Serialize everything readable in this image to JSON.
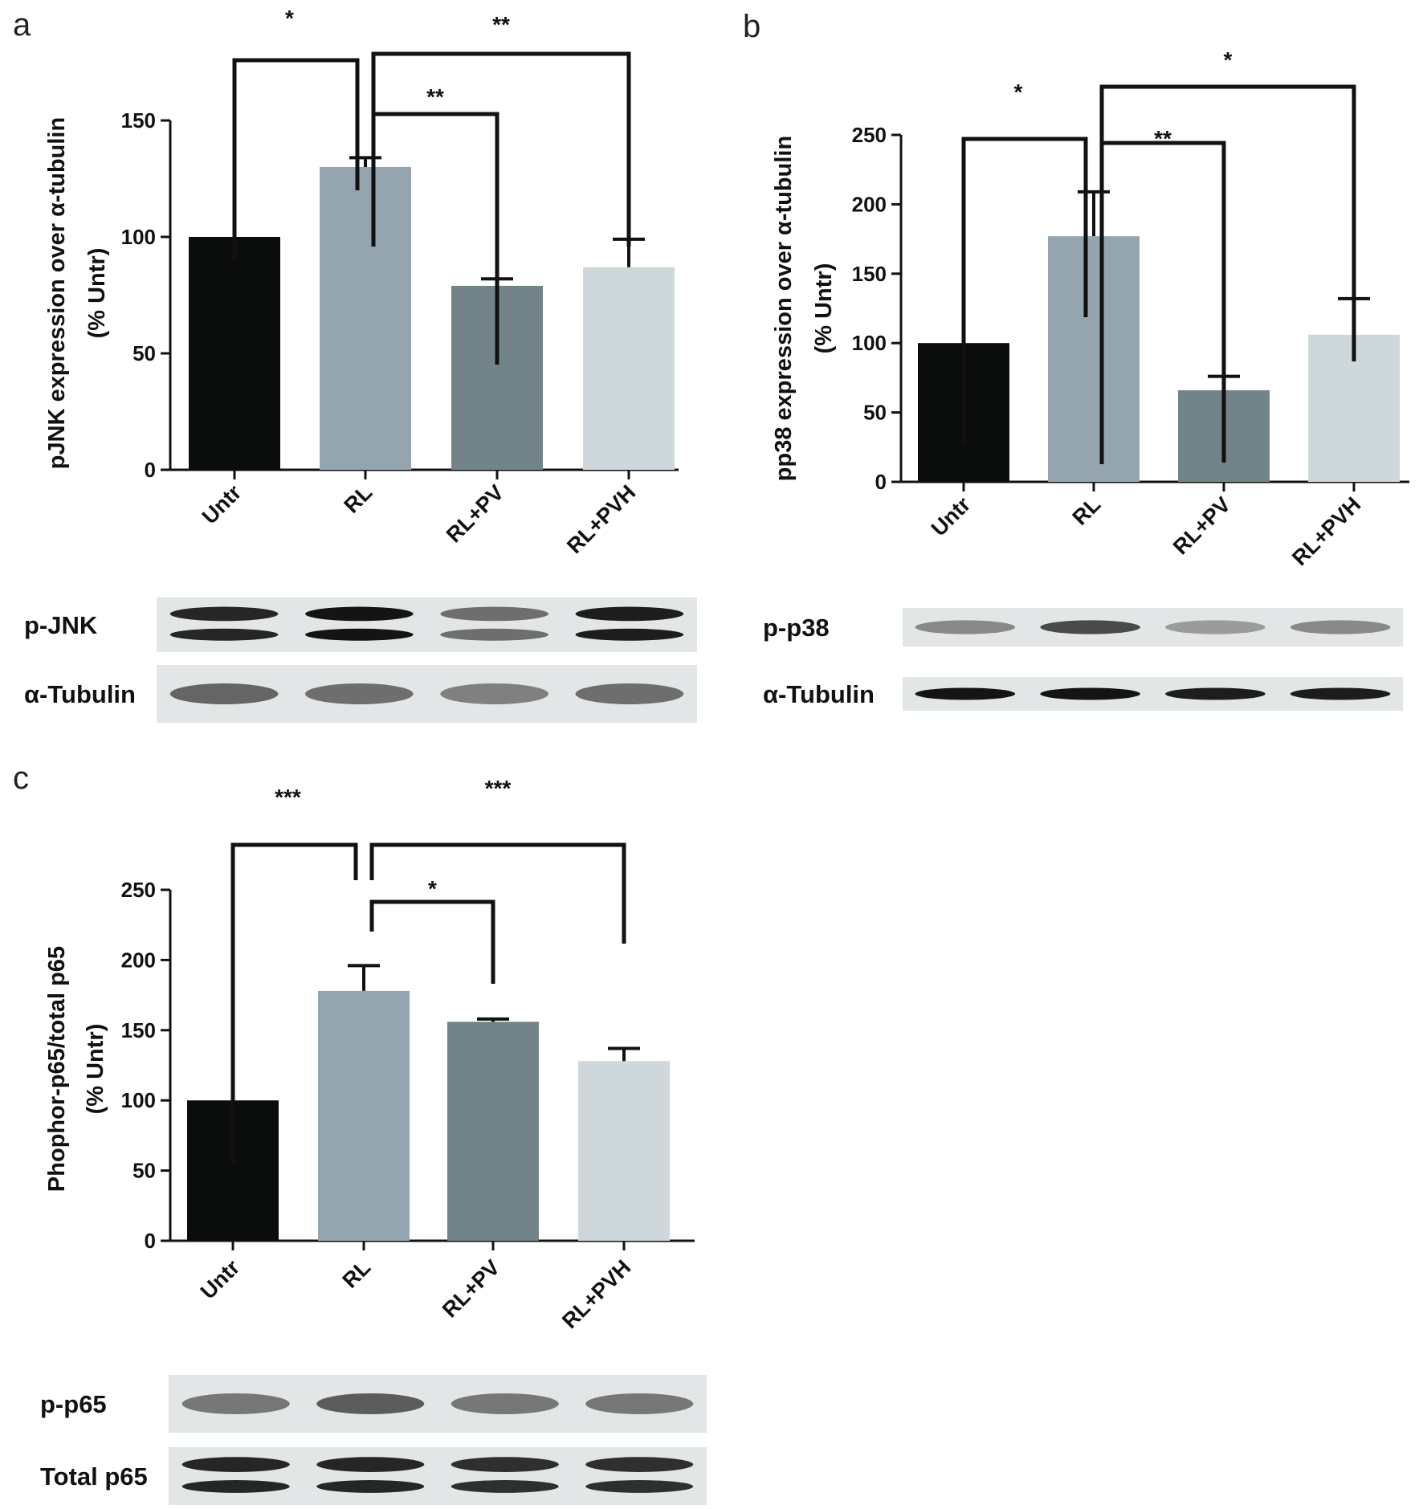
{
  "chart_data": [
    {
      "panel": "a",
      "type": "bar",
      "categories": [
        "Untr",
        "RL",
        "RL+PV",
        "RL+PVH"
      ],
      "values": [
        100,
        130,
        79,
        87
      ],
      "errors": [
        0,
        4,
        3,
        12
      ],
      "colors": [
        "#0b0d0d",
        "#94a5b0",
        "#728389",
        "#ced8db"
      ],
      "ylabel_lines": [
        "pJNK expression over α-tubulin",
        "(% Untr)"
      ],
      "ylim": [
        0,
        150
      ],
      "yticks": [
        "0",
        "50",
        "100",
        "150"
      ],
      "grid": false,
      "significance": [
        {
          "from": 0,
          "to": 1,
          "label": "*"
        },
        {
          "from": 1,
          "to": 3,
          "label": "**"
        },
        {
          "from": 1,
          "to": 2,
          "label": "**"
        }
      ],
      "blots": [
        {
          "label": "p-JNK",
          "intensities": [
            0.9,
            1.0,
            0.5,
            0.95
          ],
          "double": true
        },
        {
          "label": "α-Tubulin",
          "intensities": [
            0.55,
            0.5,
            0.4,
            0.5
          ],
          "double": false
        }
      ]
    },
    {
      "panel": "b",
      "type": "bar",
      "categories": [
        "Untr",
        "RL",
        "RL+PV",
        "RL+PVH"
      ],
      "values": [
        100,
        177,
        66,
        106
      ],
      "errors": [
        0,
        32,
        10,
        26
      ],
      "colors": [
        "#0b0d0d",
        "#94a5b0",
        "#728389",
        "#ced8db"
      ],
      "ylabel_lines": [
        "pp38 expression over α-tubulin",
        "(% Untr)"
      ],
      "ylim": [
        0,
        250
      ],
      "yticks": [
        "0",
        "50",
        "100",
        "150",
        "200",
        "250"
      ],
      "grid": false,
      "significance": [
        {
          "from": 0,
          "to": 1,
          "label": "*"
        },
        {
          "from": 1,
          "to": 3,
          "label": "*"
        },
        {
          "from": 1,
          "to": 2,
          "label": "**"
        }
      ],
      "blots": [
        {
          "label": "p-p38",
          "intensities": [
            0.35,
            0.7,
            0.25,
            0.35
          ],
          "double": false
        },
        {
          "label": "α-Tubulin",
          "intensities": [
            1.0,
            1.0,
            0.95,
            0.95
          ],
          "double": false
        }
      ]
    },
    {
      "panel": "c",
      "type": "bar",
      "categories": [
        "Untr",
        "RL",
        "RL+PV",
        "RL+PVH"
      ],
      "values": [
        100,
        178,
        156,
        128
      ],
      "errors": [
        0,
        18,
        2,
        9
      ],
      "colors": [
        "#0b0d0d",
        "#94a5b0",
        "#728389",
        "#ced8db"
      ],
      "ylabel_lines": [
        "Phophor-p65/total p65",
        "(% Untr)"
      ],
      "ylim": [
        0,
        250
      ],
      "yticks": [
        "0",
        "50",
        "100",
        "150",
        "200",
        "250"
      ],
      "grid": false,
      "significance": [
        {
          "from": 0,
          "to": 1,
          "label": "***"
        },
        {
          "from": 1,
          "to": 3,
          "label": "***"
        },
        {
          "from": 1,
          "to": 2,
          "label": "*"
        }
      ],
      "blots": [
        {
          "label": "p-p65",
          "intensities": [
            0.45,
            0.6,
            0.45,
            0.45
          ],
          "double": false
        },
        {
          "label": "Total p65",
          "intensities": [
            0.9,
            0.9,
            0.85,
            0.85
          ],
          "double": true
        }
      ]
    }
  ]
}
